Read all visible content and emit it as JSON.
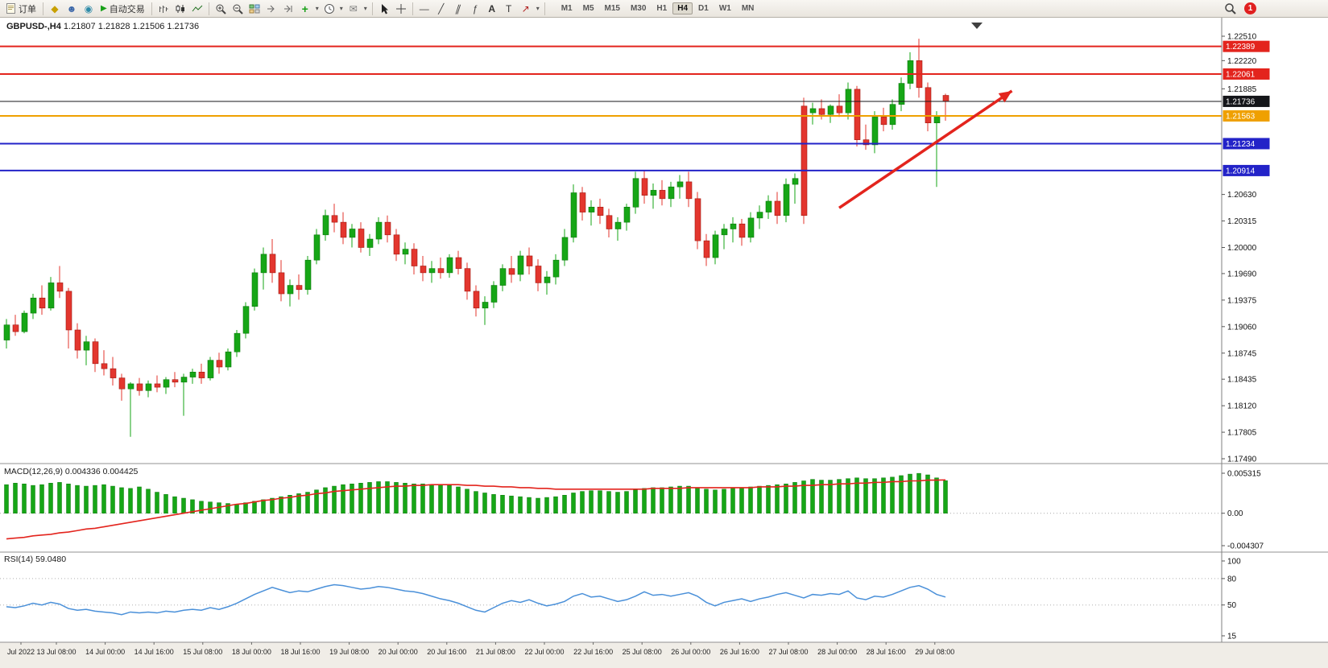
{
  "toolbar": {
    "new_order_label": "订单",
    "autotrade_label": "自动交易",
    "icon_glyphs": {
      "history": "◆",
      "profile": "☻",
      "community": "◉",
      "autotrade_play": "▶",
      "indicators_plus": "+",
      "dropdown_caret": "▾",
      "templates": "✉",
      "horizontal_line": "—",
      "trendline": "╱",
      "channel": "∥",
      "fibonacci": "ƒ",
      "text_tool": "A",
      "label_tool": "T",
      "arrows_tool": "↗"
    },
    "timeframes": [
      "M1",
      "M5",
      "M15",
      "M30",
      "H1",
      "H4",
      "D1",
      "W1",
      "MN"
    ],
    "active_timeframe": "H4",
    "notification_count": "1"
  },
  "chart_header": {
    "symbol": "GBPUSD-,H4",
    "ohlc": "1.21807 1.21828 1.21506 1.21736"
  },
  "indicators": {
    "macd": {
      "title": "MACD(12,26,9)",
      "values": "0.004336 0.004425"
    },
    "rsi": {
      "title": "RSI(14)",
      "value": "59.0480"
    }
  },
  "chart_data": [
    {
      "type": "candlestick",
      "symbol": "GBPUSD-,H4",
      "timeframe": "H4",
      "ohlc_current": {
        "open": 1.21807,
        "high": 1.21828,
        "low": 1.21506,
        "close": 1.21736
      },
      "ylim": [
        1.1749,
        1.2251
      ],
      "y_ticks": [
        "1.22510",
        "1.22220",
        "1.21885",
        "1.20630",
        "1.20315",
        "1.20000",
        "1.19690",
        "1.19375",
        "1.19060",
        "1.18745",
        "1.18435",
        "1.18120",
        "1.17805",
        "1.17490"
      ],
      "levels": [
        {
          "price": 1.22389,
          "label": "1.22389",
          "color": "#e3241d",
          "width": 2
        },
        {
          "price": 1.22061,
          "label": "1.22061",
          "color": "#e3241d",
          "width": 2
        },
        {
          "price": 1.21736,
          "label": "1.21736",
          "color": "#15161a",
          "width": 1
        },
        {
          "price": 1.21563,
          "label": "1.21563",
          "color": "#efa000",
          "width": 2
        },
        {
          "price": 1.21234,
          "label": "1.21234",
          "color": "#2323c8",
          "width": 2
        },
        {
          "price": 1.20914,
          "label": "1.20914",
          "color": "#2323c8",
          "width": 2
        }
      ],
      "up_color": "#16a616",
      "down_color": "#e3362e",
      "x_labels": [
        "Jul 2022",
        "13 Jul 08:00",
        "14 Jul 00:00",
        "14 Jul 16:00",
        "15 Jul 08:00",
        "18 Jul 00:00",
        "18 Jul 16:00",
        "19 Jul 08:00",
        "20 Jul 00:00",
        "20 Jul 16:00",
        "21 Jul 08:00",
        "22 Jul 00:00",
        "22 Jul 16:00",
        "25 Jul 08:00",
        "26 Jul 00:00",
        "26 Jul 16:00",
        "27 Jul 08:00",
        "28 Jul 00:00",
        "28 Jul 16:00",
        "29 Jul 08:00"
      ],
      "arrow_annotation": {
        "bar_from": 94,
        "price_from": 1.2047,
        "bar_to": 113.5,
        "price_to": 1.2186,
        "color": "#e3241d"
      },
      "candles": [
        [
          1.189,
          1.1915,
          1.188,
          1.1908
        ],
        [
          1.1908,
          1.192,
          1.1895,
          1.19
        ],
        [
          1.19,
          1.1925,
          1.1898,
          1.1922
        ],
        [
          1.1922,
          1.1945,
          1.1915,
          1.194
        ],
        [
          1.194,
          1.1955,
          1.192,
          1.1928
        ],
        [
          1.1928,
          1.1965,
          1.1925,
          1.1958
        ],
        [
          1.1958,
          1.1978,
          1.194,
          1.1948
        ],
        [
          1.1948,
          1.1952,
          1.188,
          1.1902
        ],
        [
          1.1902,
          1.191,
          1.1868,
          1.1878
        ],
        [
          1.1878,
          1.1895,
          1.186,
          1.1888
        ],
        [
          1.1888,
          1.1892,
          1.1852,
          1.1862
        ],
        [
          1.1862,
          1.1878,
          1.1848,
          1.1856
        ],
        [
          1.1856,
          1.187,
          1.1836,
          1.1845
        ],
        [
          1.1845,
          1.185,
          1.1818,
          1.1832
        ],
        [
          1.1832,
          1.184,
          1.1775,
          1.1838
        ],
        [
          1.1838,
          1.1845,
          1.1824,
          1.183
        ],
        [
          1.183,
          1.1842,
          1.1822,
          1.1838
        ],
        [
          1.1838,
          1.1848,
          1.1828,
          1.1834
        ],
        [
          1.1834,
          1.1846,
          1.1826,
          1.1843
        ],
        [
          1.1843,
          1.1852,
          1.1834,
          1.184
        ],
        [
          1.184,
          1.185,
          1.18,
          1.1846
        ],
        [
          1.1846,
          1.1856,
          1.1838,
          1.1852
        ],
        [
          1.1852,
          1.1862,
          1.1838,
          1.1845
        ],
        [
          1.1845,
          1.187,
          1.1842,
          1.1866
        ],
        [
          1.1866,
          1.1875,
          1.185,
          1.1858
        ],
        [
          1.1858,
          1.188,
          1.1854,
          1.1876
        ],
        [
          1.1876,
          1.1902,
          1.187,
          1.1898
        ],
        [
          1.1898,
          1.1935,
          1.1892,
          1.193
        ],
        [
          1.193,
          1.1975,
          1.1925,
          1.197
        ],
        [
          1.197,
          1.2,
          1.195,
          1.1992
        ],
        [
          1.1992,
          1.201,
          1.1958,
          1.197
        ],
        [
          1.197,
          1.1985,
          1.1936,
          1.1945
        ],
        [
          1.1945,
          1.1962,
          1.193,
          1.1955
        ],
        [
          1.1955,
          1.1968,
          1.1938,
          1.195
        ],
        [
          1.195,
          1.199,
          1.1944,
          1.1985
        ],
        [
          1.1985,
          1.2022,
          1.198,
          1.2015
        ],
        [
          1.2015,
          1.2045,
          1.2008,
          1.2038
        ],
        [
          1.2038,
          1.2052,
          1.2018,
          1.203
        ],
        [
          1.203,
          1.2042,
          1.2004,
          1.2012
        ],
        [
          1.2012,
          1.2028,
          1.2,
          1.2022
        ],
        [
          1.2022,
          1.203,
          1.1994,
          1.2
        ],
        [
          1.2,
          1.2016,
          1.199,
          1.201
        ],
        [
          1.201,
          1.2036,
          1.2004,
          1.203
        ],
        [
          1.203,
          1.2038,
          1.2006,
          1.2015
        ],
        [
          1.2015,
          1.2022,
          1.1984,
          1.1992
        ],
        [
          1.1992,
          1.2006,
          1.198,
          1.1998
        ],
        [
          1.1998,
          1.2005,
          1.1968,
          1.1978
        ],
        [
          1.1978,
          1.199,
          1.196,
          1.197
        ],
        [
          1.197,
          1.1984,
          1.1958,
          1.1975
        ],
        [
          1.1975,
          1.1988,
          1.1963,
          1.197
        ],
        [
          1.197,
          1.1992,
          1.1964,
          1.1988
        ],
        [
          1.1988,
          1.1996,
          1.1968,
          1.1975
        ],
        [
          1.1975,
          1.1982,
          1.1938,
          1.1948
        ],
        [
          1.1948,
          1.1955,
          1.1918,
          1.1928
        ],
        [
          1.1928,
          1.1942,
          1.1908,
          1.1935
        ],
        [
          1.1935,
          1.196,
          1.1928,
          1.1955
        ],
        [
          1.1955,
          1.198,
          1.1948,
          1.1975
        ],
        [
          1.1975,
          1.199,
          1.1958,
          1.1968
        ],
        [
          1.1968,
          1.1996,
          1.196,
          1.199
        ],
        [
          1.199,
          1.2,
          1.1968,
          1.1978
        ],
        [
          1.1978,
          1.1986,
          1.1948,
          1.1958
        ],
        [
          1.1958,
          1.1972,
          1.1944,
          1.1965
        ],
        [
          1.1965,
          1.1992,
          1.1956,
          1.1985
        ],
        [
          1.1985,
          1.2022,
          1.1978,
          1.2012
        ],
        [
          1.2012,
          1.2075,
          1.2006,
          1.2065
        ],
        [
          1.2065,
          1.2072,
          1.2032,
          1.2042
        ],
        [
          1.2042,
          1.2056,
          1.2026,
          1.2048
        ],
        [
          1.2048,
          1.2058,
          1.2028,
          1.2038
        ],
        [
          1.2038,
          1.2046,
          1.2012,
          1.2022
        ],
        [
          1.2022,
          1.2036,
          1.2008,
          1.203
        ],
        [
          1.203,
          1.2052,
          1.202,
          1.2048
        ],
        [
          1.2048,
          1.209,
          1.204,
          1.2082
        ],
        [
          1.2082,
          1.2092,
          1.2052,
          1.2062
        ],
        [
          1.2062,
          1.2076,
          1.2046,
          1.2068
        ],
        [
          1.2068,
          1.208,
          1.205,
          1.2058
        ],
        [
          1.2058,
          1.2078,
          1.2048,
          1.2072
        ],
        [
          1.2072,
          1.2086,
          1.2058,
          1.2078
        ],
        [
          1.2078,
          1.209,
          1.2048,
          1.2058
        ],
        [
          1.2058,
          1.2066,
          1.1998,
          1.2008
        ],
        [
          1.2008,
          1.2016,
          1.1978,
          1.1988
        ],
        [
          1.1988,
          1.202,
          1.198,
          1.2015
        ],
        [
          1.2015,
          1.2028,
          1.1998,
          1.2022
        ],
        [
          1.2022,
          1.2036,
          1.2006,
          1.2028
        ],
        [
          1.2028,
          1.2034,
          1.2002,
          1.2012
        ],
        [
          1.2012,
          1.2042,
          1.2006,
          1.2035
        ],
        [
          1.2035,
          1.205,
          1.2022,
          1.2042
        ],
        [
          1.2042,
          1.2062,
          1.2034,
          1.2055
        ],
        [
          1.2055,
          1.2066,
          1.2028,
          1.2038
        ],
        [
          1.2038,
          1.2082,
          1.203,
          1.2075
        ],
        [
          1.2075,
          1.2088,
          1.2052,
          1.2082
        ],
        [
          1.2168,
          1.2178,
          1.2028,
          1.2038
        ],
        [
          1.216,
          1.2172,
          1.2146,
          1.2165
        ],
        [
          1.2165,
          1.2176,
          1.2152,
          1.2158
        ],
        [
          1.2158,
          1.217,
          1.2148,
          1.2168
        ],
        [
          1.2168,
          1.2182,
          1.2155,
          1.216
        ],
        [
          1.216,
          1.2196,
          1.2152,
          1.2188
        ],
        [
          1.2188,
          1.2192,
          1.212,
          1.2128
        ],
        [
          1.2128,
          1.2146,
          1.2116,
          1.2122
        ],
        [
          1.2122,
          1.2162,
          1.2112,
          1.2155
        ],
        [
          1.2155,
          1.2166,
          1.2138,
          1.2146
        ],
        [
          1.2146,
          1.2176,
          1.214,
          1.217
        ],
        [
          1.217,
          1.2202,
          1.2162,
          1.2195
        ],
        [
          1.2195,
          1.2232,
          1.2188,
          1.2222
        ],
        [
          1.2222,
          1.2248,
          1.2178,
          1.219
        ],
        [
          1.219,
          1.2196,
          1.2138,
          1.2148
        ],
        [
          1.2148,
          1.2162,
          1.2072,
          1.2156
        ],
        [
          1.21807,
          1.21828,
          1.21506,
          1.21736
        ]
      ]
    },
    {
      "type": "bar",
      "title": "MACD(12,26,9)",
      "current_values": [
        0.004336,
        0.004425
      ],
      "ylim": [
        -0.004307,
        0.005315
      ],
      "y_ticks": [
        "0.005315",
        "0.00",
        "-0.004307"
      ],
      "histogram_color": "#16a616",
      "signal_color": "#e3241d",
      "histogram": [
        0.0038,
        0.004,
        0.0039,
        0.0037,
        0.0038,
        0.004,
        0.0041,
        0.0039,
        0.0037,
        0.0036,
        0.0037,
        0.0038,
        0.0036,
        0.0034,
        0.0033,
        0.0035,
        0.0032,
        0.0028,
        0.0025,
        0.0022,
        0.002,
        0.0018,
        0.0016,
        0.0015,
        0.0014,
        0.0013,
        0.0012,
        0.0014,
        0.0016,
        0.0018,
        0.002,
        0.0022,
        0.0024,
        0.0026,
        0.0028,
        0.0031,
        0.0034,
        0.0036,
        0.0038,
        0.0039,
        0.004,
        0.0041,
        0.0042,
        0.0042,
        0.0041,
        0.004,
        0.0039,
        0.0039,
        0.0038,
        0.0038,
        0.0037,
        0.0035,
        0.0032,
        0.0029,
        0.0027,
        0.0025,
        0.0024,
        0.0023,
        0.0022,
        0.0021,
        0.002,
        0.0021,
        0.0022,
        0.0024,
        0.0027,
        0.0029,
        0.003,
        0.003,
        0.0029,
        0.0028,
        0.0029,
        0.0031,
        0.0033,
        0.0034,
        0.0034,
        0.0035,
        0.0036,
        0.0036,
        0.0034,
        0.0032,
        0.0031,
        0.0032,
        0.0033,
        0.0034,
        0.0035,
        0.0036,
        0.0037,
        0.0038,
        0.0039,
        0.0041,
        0.0043,
        0.0045,
        0.0044,
        0.0044,
        0.0045,
        0.0046,
        0.0047,
        0.0046,
        0.0046,
        0.0047,
        0.0048,
        0.005,
        0.0052,
        0.0053,
        0.0051,
        0.0047,
        0.004336
      ],
      "signal": [
        -0.0034,
        -0.0033,
        -0.0032,
        -0.003,
        -0.0029,
        -0.0028,
        -0.0026,
        -0.0025,
        -0.0023,
        -0.0021,
        -0.002,
        -0.0018,
        -0.0016,
        -0.0014,
        -0.0012,
        -0.001,
        -0.0008,
        -0.0006,
        -0.0004,
        -0.0002,
        0.0,
        0.0002,
        0.0004,
        0.0006,
        0.0008,
        0.001,
        0.0012,
        0.0013,
        0.0015,
        0.0017,
        0.0018,
        0.002,
        0.0021,
        0.0023,
        0.0024,
        0.0026,
        0.0027,
        0.0029,
        0.003,
        0.0031,
        0.0032,
        0.0033,
        0.0034,
        0.0035,
        0.0036,
        0.0036,
        0.0037,
        0.0037,
        0.0038,
        0.0038,
        0.0038,
        0.0038,
        0.0037,
        0.0037,
        0.0036,
        0.0036,
        0.0035,
        0.0035,
        0.0034,
        0.0034,
        0.0033,
        0.0033,
        0.0032,
        0.0032,
        0.0032,
        0.0032,
        0.0032,
        0.0032,
        0.0032,
        0.0032,
        0.0032,
        0.0032,
        0.0032,
        0.0033,
        0.0033,
        0.0033,
        0.0033,
        0.0034,
        0.0034,
        0.0034,
        0.0034,
        0.0034,
        0.0034,
        0.0034,
        0.0034,
        0.0035,
        0.0035,
        0.0035,
        0.0036,
        0.0036,
        0.0037,
        0.0037,
        0.0038,
        0.0038,
        0.0039,
        0.0039,
        0.004,
        0.004,
        0.0041,
        0.0041,
        0.0042,
        0.0042,
        0.0043,
        0.0043,
        0.0044,
        0.0044,
        0.004425
      ]
    },
    {
      "type": "line",
      "title": "RSI(14)",
      "current_value": 59.048,
      "ylim": [
        15,
        100
      ],
      "y_ticks": [
        "100",
        "80",
        "50",
        "15"
      ],
      "level_lines": [
        80,
        50
      ],
      "line_color": "#4a90d9",
      "values": [
        48,
        47,
        49,
        52,
        50,
        53,
        51,
        46,
        44,
        45,
        43,
        42,
        41,
        39,
        42,
        41,
        42,
        41,
        43,
        42,
        44,
        45,
        44,
        47,
        45,
        48,
        52,
        57,
        62,
        66,
        70,
        67,
        64,
        66,
        65,
        68,
        71,
        73,
        72,
        70,
        68,
        69,
        71,
        70,
        68,
        66,
        65,
        63,
        60,
        57,
        55,
        52,
        48,
        44,
        42,
        47,
        52,
        55,
        53,
        56,
        52,
        49,
        51,
        54,
        60,
        63,
        59,
        60,
        57,
        54,
        56,
        60,
        65,
        61,
        62,
        60,
        62,
        64,
        60,
        53,
        49,
        53,
        55,
        57,
        54,
        57,
        59,
        62,
        64,
        61,
        58,
        62,
        61,
        63,
        62,
        66,
        58,
        56,
        60,
        59,
        62,
        66,
        70,
        72,
        68,
        62,
        59.05
      ]
    }
  ]
}
